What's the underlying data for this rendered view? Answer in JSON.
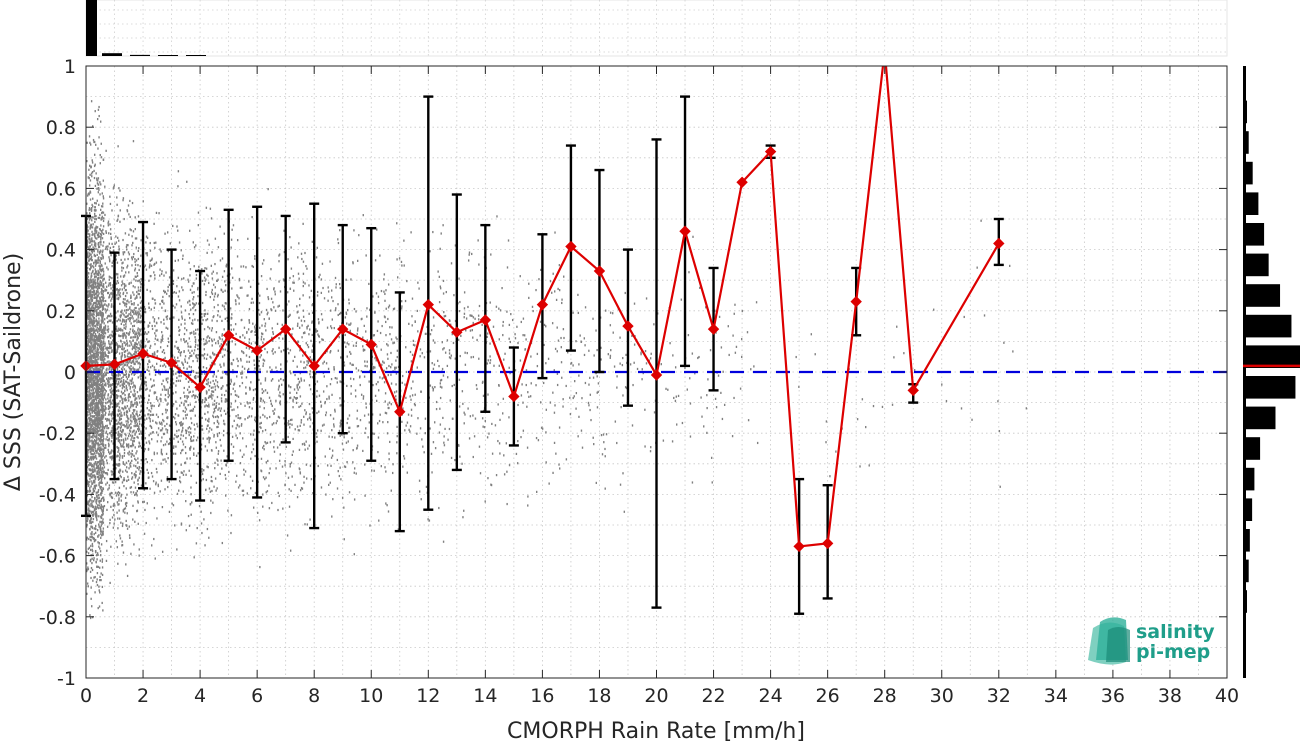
{
  "chart_data": {
    "type": "scatter",
    "xlabel": "CMORPH Rain Rate [mm/h]",
    "ylabel": "Δ SSS (SAT-Saildrone)",
    "xlim": [
      0,
      40
    ],
    "ylim": [
      -1,
      1
    ],
    "xticks": [
      "0",
      "2",
      "4",
      "6",
      "8",
      "10",
      "12",
      "14",
      "16",
      "18",
      "20",
      "22",
      "24",
      "26",
      "28",
      "30",
      "32",
      "34",
      "36",
      "38",
      "40"
    ],
    "yticks": [
      "-1",
      "-0.8",
      "-0.6",
      "-0.4",
      "-0.2",
      "0",
      "0.2",
      "0.4",
      "0.6",
      "0.8",
      "1"
    ],
    "grid": true,
    "reference_line": {
      "y": 0,
      "style": "dashed",
      "color": "#0000dd"
    },
    "bin_means": {
      "x": [
        0,
        1,
        2,
        3,
        4,
        5,
        6,
        7,
        8,
        9,
        10,
        11,
        12,
        13,
        14,
        15,
        16,
        17,
        18,
        19,
        20,
        21,
        22,
        23,
        24,
        25,
        26,
        27,
        28,
        29,
        32
      ],
      "y": [
        0.02,
        0.025,
        0.06,
        0.03,
        -0.05,
        0.12,
        0.07,
        0.14,
        0.02,
        0.14,
        0.09,
        -0.13,
        0.22,
        0.13,
        0.17,
        -0.08,
        0.22,
        0.41,
        0.33,
        0.15,
        -0.01,
        0.46,
        0.14,
        0.62,
        0.72,
        -0.57,
        -0.56,
        0.23,
        1.05,
        -0.06,
        0.42
      ],
      "color": "#dd0000"
    },
    "error_bars": {
      "x": [
        0,
        1,
        2,
        3,
        4,
        5,
        6,
        7,
        8,
        9,
        10,
        11,
        12,
        13,
        14,
        15,
        16,
        17,
        18,
        19,
        20,
        21,
        22,
        27,
        29,
        32,
        24,
        25,
        26
      ],
      "lower": [
        -0.47,
        -0.35,
        -0.38,
        -0.35,
        -0.42,
        -0.29,
        -0.41,
        -0.23,
        -0.51,
        -0.2,
        -0.29,
        -0.52,
        -0.45,
        -0.32,
        -0.13,
        -0.24,
        -0.02,
        0.07,
        0.0,
        -0.11,
        -0.77,
        0.02,
        -0.06,
        0.12,
        -0.1,
        0.35,
        0.7,
        -0.79,
        -0.74
      ],
      "upper": [
        0.51,
        0.39,
        0.49,
        0.4,
        0.33,
        0.53,
        0.54,
        0.51,
        0.55,
        0.48,
        0.47,
        0.26,
        0.9,
        0.58,
        0.48,
        0.08,
        0.45,
        0.74,
        0.66,
        0.4,
        0.76,
        0.9,
        0.34,
        0.34,
        -0.04,
        0.5,
        0.74,
        -0.35,
        -0.37
      ],
      "color": "#000000"
    },
    "scatter_color": "#808080",
    "top_histogram": {
      "bins": [
        0,
        1,
        2,
        3,
        4
      ],
      "relative_heights": [
        1.0,
        0.05,
        0.02,
        0.01,
        0.005
      ]
    },
    "right_histogram": {
      "bin_centers": [
        -0.95,
        -0.85,
        -0.75,
        -0.65,
        -0.55,
        -0.45,
        -0.35,
        -0.25,
        -0.15,
        -0.05,
        0.05,
        0.15,
        0.25,
        0.35,
        0.45,
        0.55,
        0.65,
        0.75,
        0.85,
        0.95
      ],
      "relative_widths": [
        0.03,
        0.05,
        0.07,
        0.1,
        0.12,
        0.16,
        0.2,
        0.3,
        0.57,
        0.92,
        1.0,
        0.85,
        0.65,
        0.45,
        0.37,
        0.27,
        0.17,
        0.1,
        0.07,
        0.05
      ],
      "mean_line": 0.02,
      "mean_color": "#dd0000"
    }
  },
  "logo": {
    "line1": "salinity",
    "line2": "pi-mep",
    "color": "#1f9e8a"
  }
}
